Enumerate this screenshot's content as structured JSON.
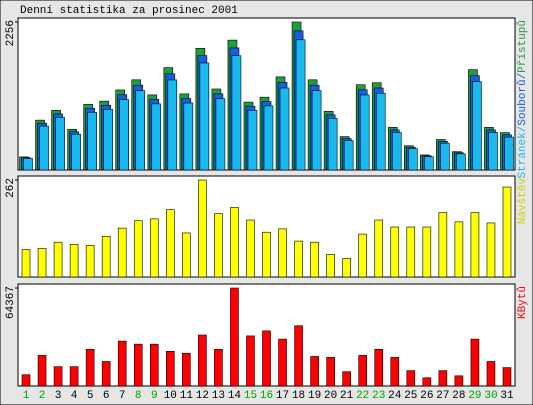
{
  "chart_data": [
    {
      "type": "bar",
      "title": "Denní statistika za prosinec 2001",
      "ylim": [
        0,
        2256
      ],
      "yticks": [
        2256
      ],
      "legend_separator": "/",
      "series": [
        {
          "name": "Přístupů",
          "color": "#1e9e3e",
          "values": [
            200,
            760,
            910,
            620,
            1000,
            1050,
            1220,
            1375,
            1145,
            1560,
            1160,
            1855,
            1235,
            1980,
            1035,
            1110,
            1420,
            2256,
            1375,
            895,
            510,
            1300,
            1330,
            650,
            370,
            230,
            465,
            280,
            1530,
            650,
            570
          ]
        },
        {
          "name": "Souborů",
          "color": "#1560e0",
          "values": [
            188,
            714,
            855,
            583,
            940,
            987,
            1147,
            1293,
            1076,
            1466,
            1090,
            1744,
            1161,
            1861,
            973,
            1043,
            1335,
            2121,
            1293,
            841,
            479,
            1222,
            1250,
            611,
            348,
            216,
            437,
            263,
            1438,
            611,
            536
          ]
        },
        {
          "name": "Stránek",
          "color": "#18b8f0",
          "values": [
            176,
            669,
            801,
            546,
            880,
            924,
            1074,
            1210,
            1008,
            1373,
            1021,
            1632,
            1087,
            1742,
            911,
            977,
            1250,
            1985,
            1210,
            788,
            449,
            1144,
            1170,
            572,
            326,
            202,
            409,
            246,
            1346,
            572,
            502
          ]
        }
      ]
    },
    {
      "type": "bar",
      "ylim": [
        0,
        262
      ],
      "yticks": [
        262
      ],
      "series": [
        {
          "name": "Návštěv",
          "color": "#ffff00",
          "values": [
            74,
            77,
            94,
            88,
            85,
            110,
            132,
            152,
            157,
            182,
            119,
            262,
            171,
            188,
            154,
            121,
            130,
            97,
            94,
            61,
            50,
            116,
            154,
            135,
            135,
            135,
            174,
            149,
            174,
            146,
            243
          ]
        }
      ]
    },
    {
      "type": "bar",
      "ylim": [
        0,
        64367
      ],
      "yticks": [
        64367
      ],
      "series": [
        {
          "name": "KBytů",
          "color": "#ff0000",
          "values": [
            7400,
            20100,
            12700,
            12700,
            24100,
            16100,
            29500,
            27500,
            27500,
            22800,
            21500,
            33500,
            24100,
            64367,
            32900,
            36200,
            30800,
            39600,
            19400,
            18800,
            9400,
            20100,
            24100,
            18800,
            10100,
            5400,
            10100,
            6700,
            30800,
            16100,
            12100
          ]
        }
      ],
      "categories": [
        "1",
        "2",
        "3",
        "4",
        "5",
        "6",
        "7",
        "8",
        "9",
        "10",
        "11",
        "12",
        "13",
        "14",
        "15",
        "16",
        "17",
        "18",
        "19",
        "20",
        "21",
        "22",
        "23",
        "24",
        "25",
        "26",
        "27",
        "28",
        "29",
        "30",
        "31"
      ],
      "category_colors": [
        "#00a000",
        "#00a000",
        "#000",
        "#000",
        "#000",
        "#000",
        "#000",
        "#00a000",
        "#00a000",
        "#000",
        "#000",
        "#000",
        "#000",
        "#000",
        "#00a000",
        "#00a000",
        "#000",
        "#000",
        "#000",
        "#000",
        "#000",
        "#00a000",
        "#00a000",
        "#000",
        "#000",
        "#000",
        "#000",
        "#000",
        "#00a000",
        "#00a000",
        "#000"
      ]
    }
  ]
}
